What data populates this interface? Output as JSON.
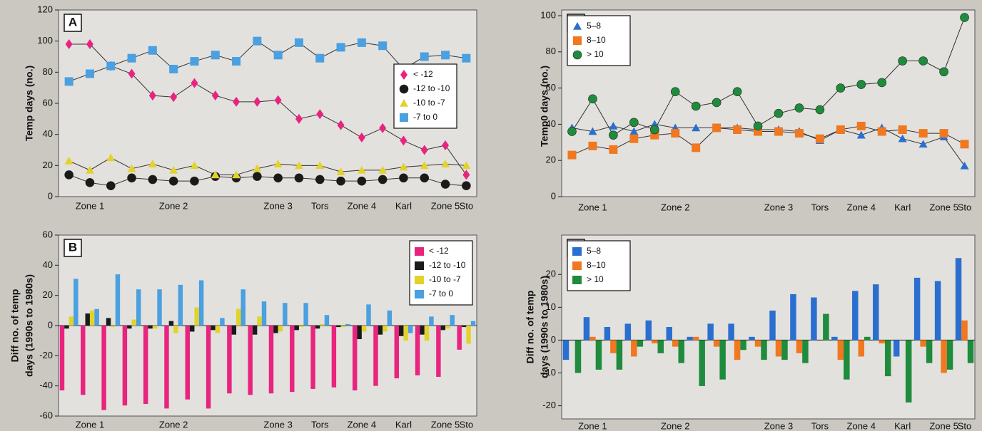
{
  "chart_data": [
    {
      "type": "line",
      "label": "A",
      "ylabel": [
        "Temp days (no.)"
      ],
      "categories": [
        null,
        "Zone 1",
        null,
        null,
        null,
        "Zone 2",
        null,
        null,
        null,
        null,
        "Zone 3",
        null,
        "Tors",
        null,
        "Zone 4",
        null,
        "Karl",
        null,
        "Zone 5",
        "Sto"
      ],
      "ylim": [
        0,
        120
      ],
      "yticks": [
        0,
        20,
        40,
        60,
        80,
        100,
        120
      ],
      "legend": "right",
      "line_color": "#333333",
      "series": [
        {
          "name": "< -12",
          "color": "#e8247f",
          "marker": "diamond",
          "values": [
            98,
            98,
            84,
            79,
            65,
            64,
            73,
            65,
            61,
            61,
            62,
            50,
            53,
            46,
            38,
            44,
            36,
            30,
            33,
            14
          ]
        },
        {
          "name": "-12 to -10",
          "color": "#1a1a1a",
          "marker": "circle",
          "values": [
            14,
            9,
            7,
            12,
            11,
            10,
            10,
            13,
            12,
            13,
            12,
            12,
            11,
            10,
            10,
            11,
            12,
            12,
            8,
            7
          ]
        },
        {
          "name": "-10 to -7",
          "color": "#e2d22c",
          "marker": "triangle",
          "values": [
            23,
            17,
            25,
            18,
            21,
            17,
            20,
            14,
            14,
            18,
            21,
            20,
            20,
            16,
            17,
            17,
            19,
            20,
            21,
            20
          ]
        },
        {
          "name": "-7 to 0",
          "color": "#4aa0e0",
          "marker": "square",
          "values": [
            74,
            79,
            84,
            89,
            94,
            82,
            87,
            91,
            87,
            100,
            91,
            99,
            89,
            96,
            99,
            97,
            82,
            90,
            91,
            89
          ]
        }
      ]
    },
    {
      "type": "bar",
      "label": "B",
      "ylabel": [
        "Diff no. of temp",
        "days (1990s to 1980s)"
      ],
      "categories": [
        null,
        "Zone 1",
        null,
        null,
        null,
        "Zone 2",
        null,
        null,
        null,
        null,
        "Zone 3",
        null,
        "Tors",
        null,
        "Zone 4",
        null,
        "Karl",
        null,
        "Zone 5",
        "Sto"
      ],
      "ylim": [
        -60,
        60
      ],
      "yticks": [
        -60,
        -40,
        -20,
        0,
        20,
        40,
        60
      ],
      "legend": "upper right",
      "series": [
        {
          "name": "< -12",
          "color": "#e8247f",
          "values": [
            -43,
            -46,
            -56,
            -53,
            -52,
            -55,
            -49,
            -55,
            -45,
            -46,
            -45,
            -44,
            -42,
            -41,
            -43,
            -40,
            -35,
            -33,
            -34,
            -16
          ]
        },
        {
          "name": "-12 to -10",
          "color": "#1a1a1a",
          "values": [
            -2,
            8,
            5,
            -2,
            -2,
            3,
            -4,
            -3,
            -6,
            -6,
            -5,
            -3,
            -2,
            -1,
            -9,
            -6,
            -7,
            -6,
            -3,
            -1
          ]
        },
        {
          "name": "-10 to -7",
          "color": "#e2d22c",
          "values": [
            6,
            10,
            -1,
            4,
            -2,
            -5,
            12,
            -5,
            11,
            6,
            -4,
            -1,
            1,
            -1,
            -4,
            -4,
            -10,
            -10,
            -2,
            -12
          ]
        },
        {
          "name": "-7 to 0",
          "color": "#4aa0e0",
          "values": [
            31,
            11,
            34,
            24,
            24,
            27,
            30,
            5,
            24,
            16,
            15,
            15,
            7,
            1,
            14,
            10,
            -5,
            6,
            7,
            3
          ]
        }
      ]
    },
    {
      "type": "line",
      "label": "C",
      "ylabel": [
        "Temp0 days (no.)"
      ],
      "categories": [
        null,
        "Zone 1",
        null,
        null,
        null,
        "Zone 2",
        null,
        null,
        null,
        null,
        "Zone 3",
        null,
        "Tors",
        null,
        "Zone 4",
        null,
        "Karl",
        null,
        "Zone 5",
        "Sto"
      ],
      "ylim": [
        0,
        100
      ],
      "yticks": [
        0,
        20,
        40,
        60,
        80,
        100
      ],
      "legend": "upper left",
      "line_color": "#333333",
      "series": [
        {
          "name": "5–8",
          "color": "#2a6fd0",
          "marker": "triangle",
          "values": [
            38,
            36,
            39,
            36,
            40,
            38,
            38,
            38,
            38,
            37,
            37,
            36,
            31,
            37,
            34,
            38,
            32,
            29,
            33,
            17
          ]
        },
        {
          "name": "8–10",
          "color": "#f07820",
          "marker": "square",
          "values": [
            23,
            28,
            26,
            32,
            34,
            35,
            27,
            38,
            37,
            36,
            36,
            35,
            32,
            37,
            39,
            36,
            37,
            35,
            35,
            29
          ]
        },
        {
          "name": "> 10",
          "color": "#1e8c3c",
          "marker": "circle",
          "values": [
            36,
            54,
            34,
            41,
            37,
            58,
            50,
            52,
            58,
            39,
            46,
            49,
            48,
            60,
            62,
            63,
            75,
            75,
            69,
            99
          ]
        }
      ]
    },
    {
      "type": "bar",
      "label": "D",
      "ylabel": [
        "Diff no. of temp",
        "days (1990s to 1980s)"
      ],
      "categories": [
        null,
        "Zone 1",
        null,
        null,
        null,
        "Zone 2",
        null,
        null,
        null,
        null,
        "Zone 3",
        null,
        "Tors",
        null,
        "Zone 4",
        null,
        "Karl",
        null,
        "Zone 5",
        "Sto"
      ],
      "ylim": [
        -24,
        32
      ],
      "yticks": [
        -20,
        -10,
        0,
        10,
        20
      ],
      "legend": "upper left",
      "series": [
        {
          "name": "5–8",
          "color": "#2a6fd0",
          "values": [
            -6,
            7,
            4,
            5,
            6,
            4,
            1,
            5,
            5,
            1,
            9,
            14,
            13,
            1,
            15,
            17,
            -5,
            19,
            18,
            25
          ]
        },
        {
          "name": "8–10",
          "color": "#f07820",
          "values": [
            0,
            1,
            -4,
            -5,
            -1,
            -2,
            1,
            -2,
            -6,
            -2,
            -5,
            -4,
            0,
            -6,
            -5,
            -1,
            0,
            -2,
            -10,
            6
          ]
        },
        {
          "name": "> 10",
          "color": "#1e8c3c",
          "values": [
            -10,
            -9,
            -9,
            -2,
            -4,
            -7,
            -14,
            -12,
            -3,
            -6,
            -6,
            -7,
            8,
            -12,
            1,
            -11,
            -19,
            -7,
            -9,
            -7
          ]
        }
      ]
    }
  ]
}
